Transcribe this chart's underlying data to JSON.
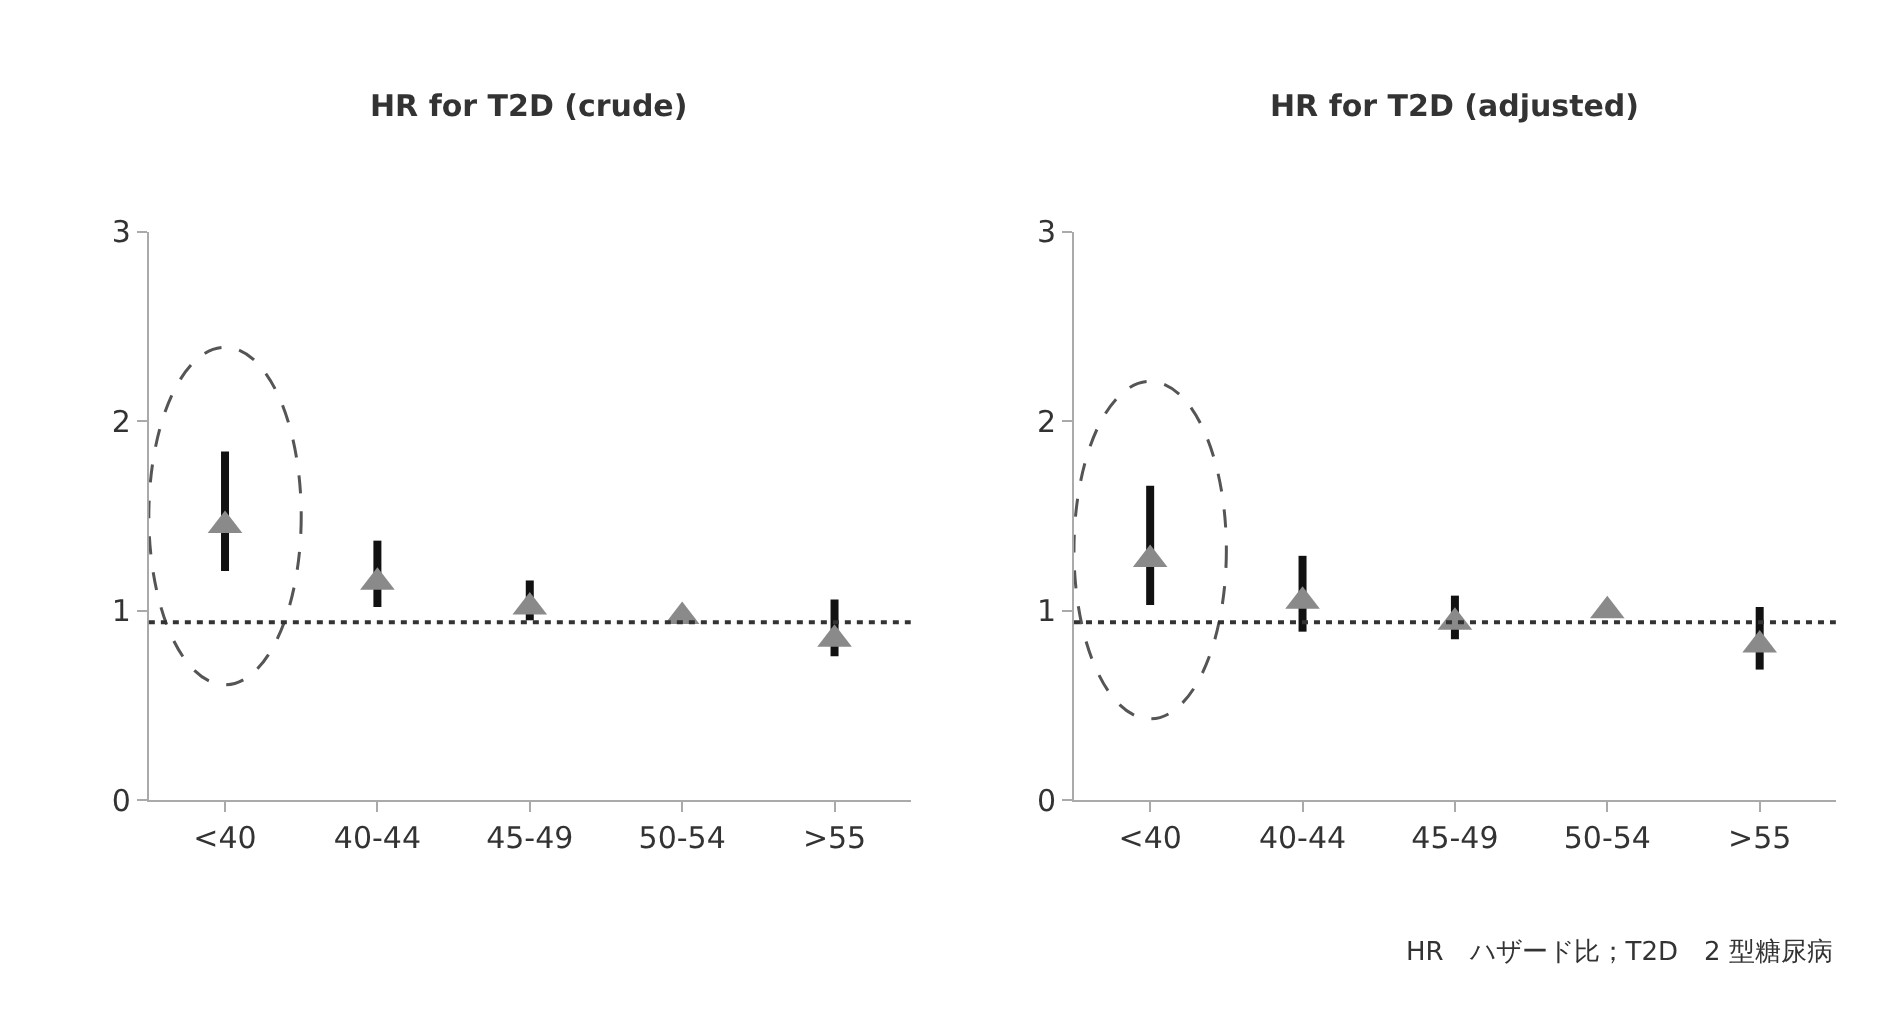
{
  "chart_data": [
    {
      "type": "scatter",
      "title": "HR for T2D (crude)",
      "categories": [
        "<40",
        "40-44",
        "45-49",
        "50-54",
        ">55"
      ],
      "series": [
        {
          "color": "#8a8a8a",
          "values": [
            1.45,
            1.15,
            1.02,
            0.97,
            0.85
          ],
          "errors": [
            [
              1.21,
              1.84
            ],
            [
              1.02,
              1.37
            ],
            [
              0.95,
              1.16
            ],
            null,
            [
              0.76,
              1.06
            ]
          ]
        }
      ],
      "ylim": [
        0,
        3
      ],
      "yticks": [
        0,
        1,
        2,
        3
      ],
      "marker": "triangle",
      "ref_lines": [
        {
          "axis": "y",
          "value": 0.94,
          "line_style": "dotted",
          "color": "#333333"
        }
      ]
    },
    {
      "type": "scatter",
      "title": "HR for T2D (adjusted)",
      "categories": [
        "<40",
        "40-44",
        "45-49",
        "50-54",
        ">55"
      ],
      "series": [
        {
          "color": "#8a8a8a",
          "values": [
            1.27,
            1.05,
            0.94,
            1.0,
            0.82
          ],
          "errors": [
            [
              1.03,
              1.66
            ],
            [
              0.89,
              1.29
            ],
            [
              0.85,
              1.08
            ],
            null,
            [
              0.69,
              1.02
            ]
          ]
        }
      ],
      "ylim": [
        0,
        3
      ],
      "yticks": [
        0,
        1,
        2,
        3
      ],
      "marker": "triangle",
      "ref_lines": [
        {
          "axis": "y",
          "value": 0.94,
          "line_style": "dotted",
          "color": "#333333"
        }
      ],
      "annotations": [
        "HR　ハザード比；T2D　2 型糖尿病"
      ]
    }
  ]
}
